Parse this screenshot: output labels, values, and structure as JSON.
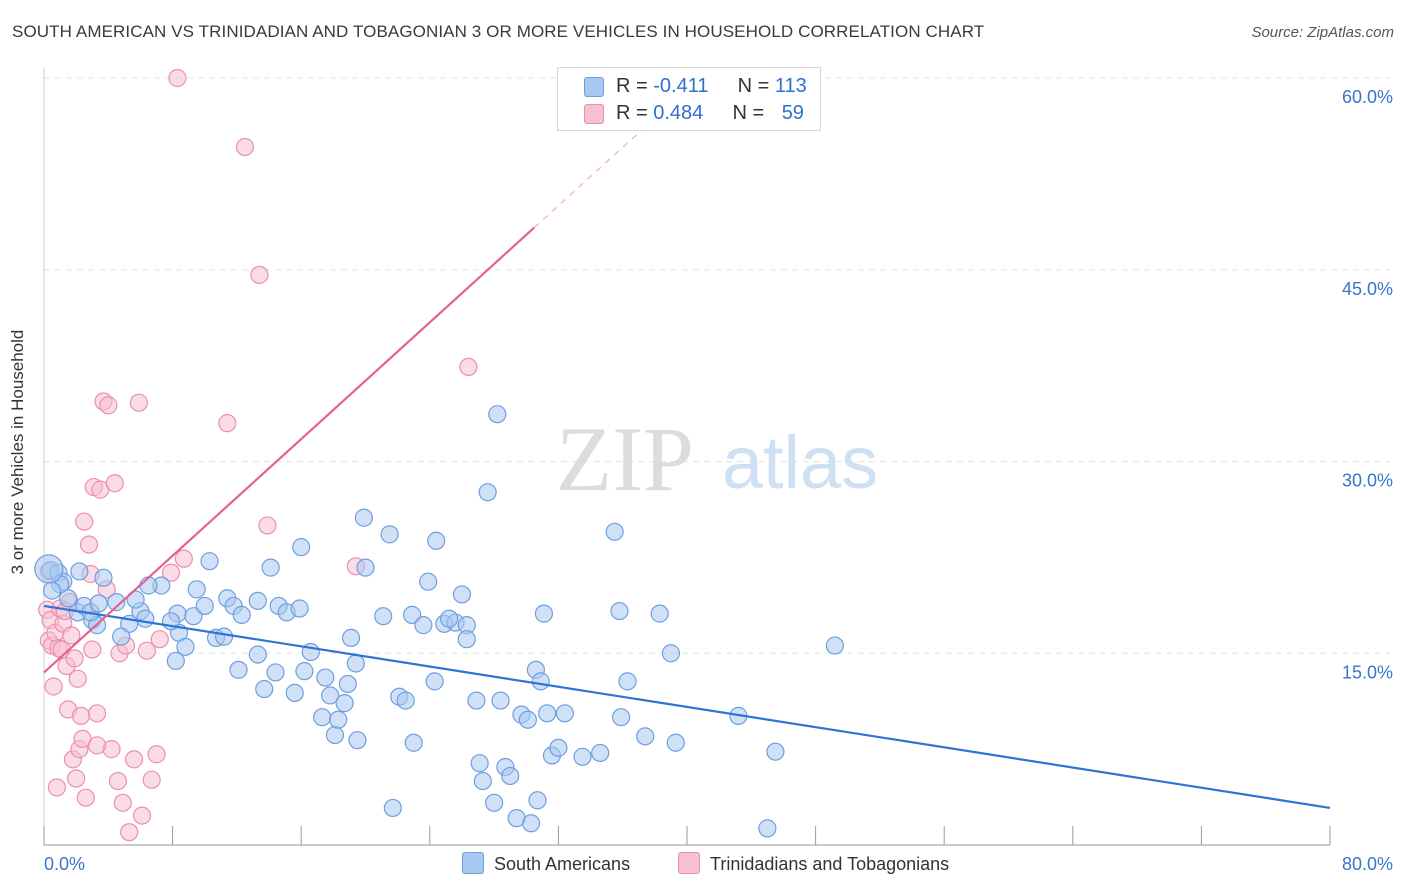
{
  "title": "SOUTH AMERICAN VS TRINIDADIAN AND TOBAGONIAN 3 OR MORE VEHICLES IN HOUSEHOLD CORRELATION CHART",
  "source": "Source: ZipAtlas.com",
  "watermark": {
    "zip": "ZIP",
    "atlas": "atlas"
  },
  "colors": {
    "blue_fill": "#a9c8f0",
    "blue_stroke": "#6d9fe0",
    "blue_line": "#2f73d6",
    "pink_fill": "#f6bfd2",
    "pink_stroke": "#ec8fb0",
    "pink_line": "#e4628e",
    "tick_label": "#3b74cc",
    "grid": "#e3e3e3"
  },
  "legend": {
    "rows": [
      {
        "r_label": "R = ",
        "r_value": "-0.411",
        "n_label": "N = ",
        "n_value": "113"
      },
      {
        "r_label": "R = ",
        "r_value": "0.484",
        "n_label": "N = ",
        "n_value": "59"
      }
    ]
  },
  "bottom_legend": {
    "south": "South Americans",
    "trini": "Trinidadians and Tobagonians"
  },
  "chart_data": {
    "type": "scatter",
    "title": "SOUTH AMERICAN VS TRINIDADIAN AND TOBAGONIAN 3 OR MORE VEHICLES IN HOUSEHOLD CORRELATION CHART",
    "xlabel": "",
    "ylabel": "3 or more Vehicles in Household",
    "xlim": [
      0,
      80
    ],
    "ylim": [
      0,
      60
    ],
    "x_tick_labels": [
      "0.0%",
      "80.0%"
    ],
    "y_ticks": [
      15,
      30,
      45,
      60
    ],
    "y_tick_labels": [
      "15.0%",
      "30.0%",
      "45.0%",
      "60.0%"
    ],
    "grid": true,
    "legend_position": "top-center",
    "series": [
      {
        "name": "South Americans",
        "color": "#a9c8f0",
        "r": -0.411,
        "n": 113,
        "trend": {
          "x": [
            0,
            80
          ],
          "y": [
            18.7,
            2.9
          ]
        },
        "points": [
          [
            0.4,
            21.5
          ],
          [
            0.9,
            21.3
          ],
          [
            1.2,
            20.6
          ],
          [
            1.5,
            19.3
          ],
          [
            2.1,
            18.2
          ],
          [
            2.5,
            18.7
          ],
          [
            3.0,
            17.6
          ],
          [
            3.3,
            17.2
          ],
          [
            3.7,
            20.9
          ],
          [
            4.5,
            19.0
          ],
          [
            5.3,
            17.3
          ],
          [
            6.0,
            18.3
          ],
          [
            6.3,
            17.7
          ],
          [
            7.3,
            20.3
          ],
          [
            8.3,
            18.1
          ],
          [
            8.4,
            16.6
          ],
          [
            8.2,
            14.4
          ],
          [
            2.9,
            18.2
          ],
          [
            5.7,
            19.2
          ],
          [
            8.8,
            15.5
          ],
          [
            9.3,
            17.9
          ],
          [
            10.0,
            18.7
          ],
          [
            10.3,
            22.2
          ],
          [
            10.7,
            16.2
          ],
          [
            11.4,
            19.3
          ],
          [
            11.8,
            18.7
          ],
          [
            12.3,
            18.0
          ],
          [
            13.3,
            14.9
          ],
          [
            13.7,
            12.2
          ],
          [
            14.1,
            21.7
          ],
          [
            14.6,
            18.7
          ],
          [
            15.1,
            18.2
          ],
          [
            15.6,
            11.9
          ],
          [
            15.9,
            18.5
          ],
          [
            16.2,
            13.6
          ],
          [
            16.6,
            15.1
          ],
          [
            17.3,
            10.0
          ],
          [
            17.5,
            13.1
          ],
          [
            17.8,
            11.7
          ],
          [
            18.1,
            8.6
          ],
          [
            18.3,
            9.8
          ],
          [
            18.9,
            12.6
          ],
          [
            19.1,
            16.2
          ],
          [
            19.4,
            14.2
          ],
          [
            19.9,
            25.6
          ],
          [
            19.5,
            8.2
          ],
          [
            20.0,
            21.7
          ],
          [
            21.1,
            17.9
          ],
          [
            21.5,
            24.3
          ],
          [
            21.7,
            2.9
          ],
          [
            22.1,
            11.6
          ],
          [
            22.5,
            11.3
          ],
          [
            22.9,
            18.0
          ],
          [
            23.0,
            8.0
          ],
          [
            23.6,
            17.2
          ],
          [
            23.9,
            20.6
          ],
          [
            24.3,
            12.8
          ],
          [
            24.4,
            23.8
          ],
          [
            24.9,
            17.3
          ],
          [
            25.6,
            17.4
          ],
          [
            25.2,
            17.7
          ],
          [
            26.0,
            19.6
          ],
          [
            26.3,
            17.2
          ],
          [
            26.3,
            16.1
          ],
          [
            26.9,
            11.3
          ],
          [
            27.1,
            6.4
          ],
          [
            27.3,
            5.0
          ],
          [
            28.0,
            3.3
          ],
          [
            28.4,
            11.3
          ],
          [
            28.7,
            6.1
          ],
          [
            29.0,
            5.4
          ],
          [
            29.4,
            2.1
          ],
          [
            29.7,
            10.2
          ],
          [
            30.1,
            9.8
          ],
          [
            30.3,
            1.7
          ],
          [
            30.6,
            13.7
          ],
          [
            30.7,
            3.5
          ],
          [
            30.9,
            12.8
          ],
          [
            31.3,
            10.3
          ],
          [
            31.6,
            7.0
          ],
          [
            32.0,
            7.6
          ],
          [
            32.4,
            10.3
          ],
          [
            33.5,
            6.9
          ],
          [
            34.6,
            7.2
          ],
          [
            35.5,
            24.5
          ],
          [
            35.8,
            18.3
          ],
          [
            35.9,
            10.0
          ],
          [
            36.3,
            12.8
          ],
          [
            37.4,
            8.5
          ],
          [
            38.3,
            18.1
          ],
          [
            39.0,
            15.0
          ],
          [
            39.3,
            8.0
          ],
          [
            43.2,
            10.1
          ],
          [
            45.0,
            1.3
          ],
          [
            45.5,
            7.3
          ],
          [
            49.2,
            15.6
          ],
          [
            27.6,
            27.6
          ],
          [
            28.2,
            33.7
          ],
          [
            16.0,
            23.3
          ],
          [
            11.2,
            16.3
          ],
          [
            13.3,
            19.1
          ],
          [
            9.5,
            20.0
          ],
          [
            6.5,
            20.3
          ],
          [
            4.8,
            16.3
          ],
          [
            3.4,
            18.9
          ],
          [
            2.2,
            21.4
          ],
          [
            1.0,
            20.4
          ],
          [
            0.5,
            19.9
          ],
          [
            7.9,
            17.5
          ],
          [
            12.1,
            13.7
          ],
          [
            14.4,
            13.5
          ],
          [
            18.7,
            11.1
          ],
          [
            31.1,
            18.1
          ]
        ]
      },
      {
        "name": "Trinidadians and Tobagonians",
        "color": "#f6bfd2",
        "r": 0.484,
        "n": 59,
        "trend": {
          "x": [
            0,
            30.5
          ],
          "y": [
            13.5,
            48.3
          ]
        },
        "points": [
          [
            0.2,
            18.4
          ],
          [
            0.3,
            16.0
          ],
          [
            0.4,
            17.6
          ],
          [
            0.5,
            15.6
          ],
          [
            0.7,
            16.6
          ],
          [
            0.9,
            15.4
          ],
          [
            1.0,
            18.5
          ],
          [
            1.1,
            15.3
          ],
          [
            1.2,
            17.3
          ],
          [
            1.4,
            14.0
          ],
          [
            1.5,
            10.6
          ],
          [
            1.6,
            19.0
          ],
          [
            1.7,
            16.4
          ],
          [
            1.8,
            6.7
          ],
          [
            1.9,
            14.6
          ],
          [
            2.0,
            5.2
          ],
          [
            2.1,
            13.0
          ],
          [
            2.2,
            7.5
          ],
          [
            2.3,
            10.1
          ],
          [
            2.4,
            8.3
          ],
          [
            2.5,
            25.3
          ],
          [
            2.6,
            3.7
          ],
          [
            2.8,
            23.5
          ],
          [
            3.0,
            15.3
          ],
          [
            3.1,
            28.0
          ],
          [
            3.3,
            10.3
          ],
          [
            3.5,
            27.8
          ],
          [
            3.7,
            34.7
          ],
          [
            3.9,
            20.0
          ],
          [
            4.0,
            34.4
          ],
          [
            4.2,
            7.5
          ],
          [
            4.4,
            28.3
          ],
          [
            4.6,
            5.0
          ],
          [
            4.7,
            15.0
          ],
          [
            4.9,
            3.3
          ],
          [
            5.1,
            15.6
          ],
          [
            5.3,
            1.0
          ],
          [
            5.6,
            6.7
          ],
          [
            5.9,
            34.6
          ],
          [
            6.1,
            2.3
          ],
          [
            6.4,
            15.2
          ],
          [
            6.7,
            5.1
          ],
          [
            7.0,
            7.1
          ],
          [
            7.2,
            16.1
          ],
          [
            7.9,
            21.3
          ],
          [
            8.3,
            60.0
          ],
          [
            8.7,
            22.4
          ],
          [
            11.4,
            33.0
          ],
          [
            12.5,
            54.6
          ],
          [
            13.4,
            44.6
          ],
          [
            13.9,
            25.0
          ],
          [
            19.4,
            21.8
          ],
          [
            26.4,
            37.4
          ],
          [
            0.3,
            21.4
          ],
          [
            0.6,
            12.4
          ],
          [
            1.3,
            18.3
          ],
          [
            2.9,
            21.2
          ],
          [
            0.8,
            4.5
          ],
          [
            3.3,
            7.8
          ]
        ]
      }
    ]
  }
}
